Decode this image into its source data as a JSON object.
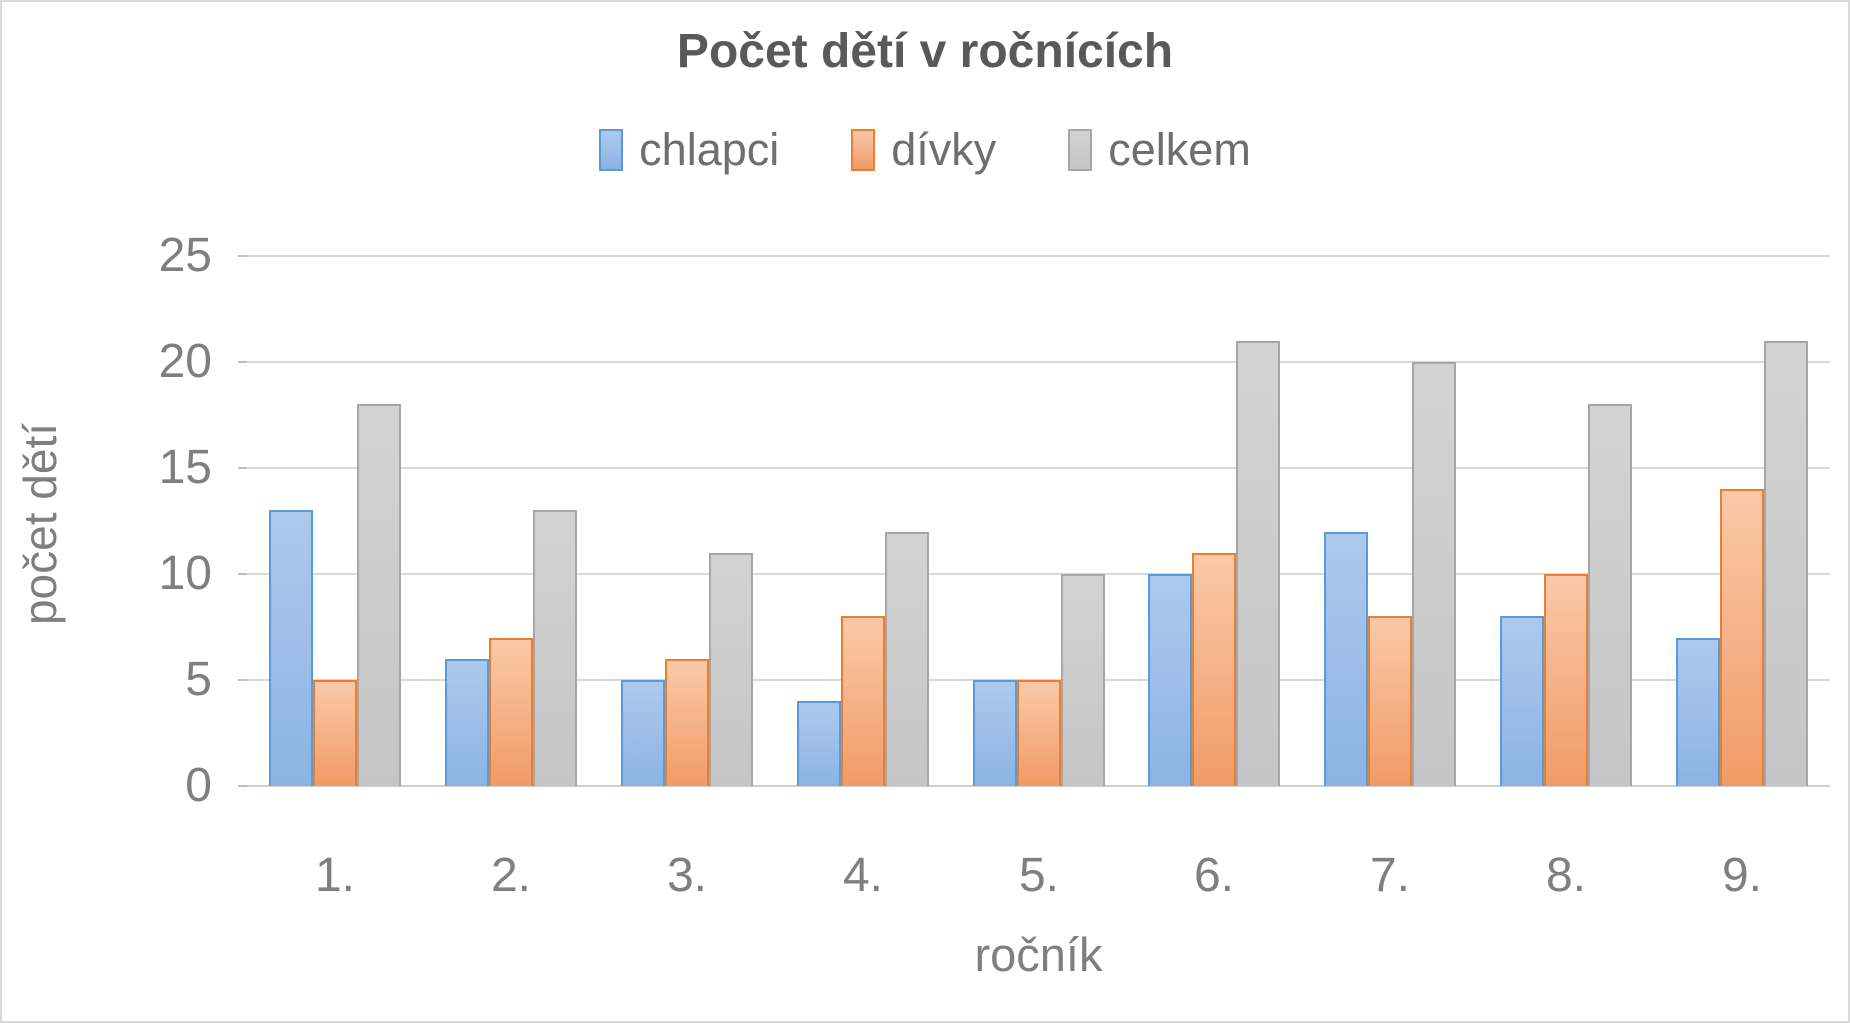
{
  "chart_data": {
    "type": "bar",
    "title": "Počet dětí v ročnících",
    "xlabel": "ročník",
    "ylabel": "počet dětí",
    "categories": [
      "1.",
      "2.",
      "3.",
      "4.",
      "5.",
      "6.",
      "7.",
      "8.",
      "9."
    ],
    "series": [
      {
        "name": "chlapci",
        "values": [
          13,
          6,
          5,
          4,
          5,
          10,
          12,
          8,
          7
        ],
        "fill_top": "#abc9ed",
        "fill_bottom": "#8db3e3",
        "border": "#5b9bd5"
      },
      {
        "name": "dívky",
        "values": [
          5,
          7,
          6,
          8,
          5,
          11,
          8,
          10,
          14
        ],
        "fill_top": "#f9c9a8",
        "fill_bottom": "#f09b67",
        "border": "#ed7d31"
      },
      {
        "name": "celkem",
        "values": [
          18,
          13,
          11,
          12,
          10,
          21,
          20,
          18,
          21
        ],
        "fill_top": "#d3d3d3",
        "fill_bottom": "#c5c5c5",
        "border": "#a6a6a6"
      }
    ],
    "ylim": [
      0,
      25
    ],
    "ytick_step": 5,
    "yticks": [
      "0",
      "5",
      "10",
      "15",
      "20",
      "25"
    ],
    "grid": "horizontal",
    "legend_position": "top",
    "colors": {
      "title_text": "#595959",
      "axis_text": "#7f7f7f",
      "gridline": "#d9d9d9"
    }
  },
  "layout_labels": {
    "legend_items": [
      "chlapci",
      "dívky",
      "celkem"
    ]
  }
}
